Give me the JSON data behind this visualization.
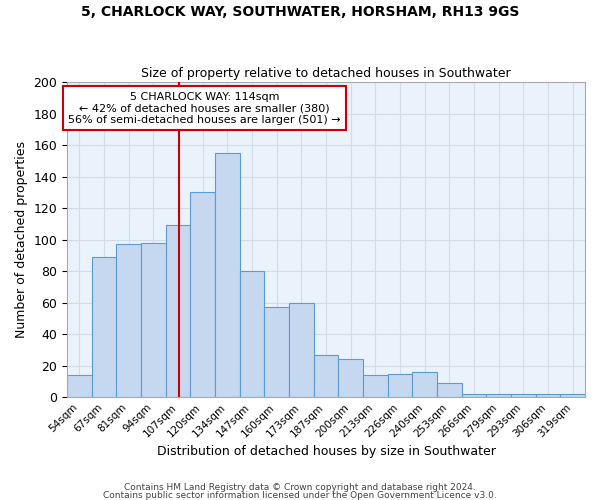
{
  "title1": "5, CHARLOCK WAY, SOUTHWATER, HORSHAM, RH13 9GS",
  "title2": "Size of property relative to detached houses in Southwater",
  "xlabel": "Distribution of detached houses by size in Southwater",
  "ylabel": "Number of detached properties",
  "bar_labels": [
    "54sqm",
    "67sqm",
    "81sqm",
    "94sqm",
    "107sqm",
    "120sqm",
    "134sqm",
    "147sqm",
    "160sqm",
    "173sqm",
    "187sqm",
    "200sqm",
    "213sqm",
    "226sqm",
    "240sqm",
    "253sqm",
    "266sqm",
    "279sqm",
    "293sqm",
    "306sqm",
    "319sqm"
  ],
  "bar_values": [
    14,
    89,
    97,
    98,
    109,
    130,
    155,
    80,
    57,
    60,
    27,
    24,
    14,
    15,
    16,
    9,
    2,
    2,
    2,
    2,
    2
  ],
  "bar_color": "#c5d8f0",
  "bar_edge_color": "#5b9bd5",
  "annotation_text": "5 CHARLOCK WAY: 114sqm\n← 42% of detached houses are smaller (380)\n56% of semi-detached houses are larger (501) →",
  "vline_color": "#cc0000",
  "annotation_box_color": "#cc0000",
  "grid_color": "#d0dce8",
  "background_color": "#eaf2fb",
  "footer1": "Contains HM Land Registry data © Crown copyright and database right 2024.",
  "footer2": "Contains public sector information licensed under the Open Government Licence v3.0.",
  "ylim": [
    0,
    200
  ],
  "yticks": [
    0,
    20,
    40,
    60,
    80,
    100,
    120,
    140,
    160,
    180,
    200
  ]
}
